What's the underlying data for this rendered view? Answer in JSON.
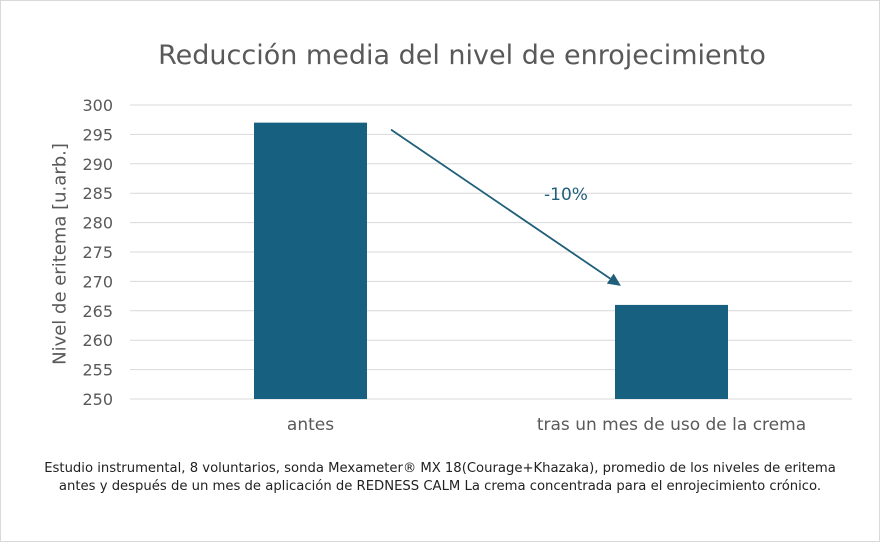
{
  "chart_data": {
    "type": "bar",
    "title": "Reducción media del nivel de enrojecimiento",
    "ylabel": "Nivel de eritema [u.arb.]",
    "xlabel": "",
    "categories": [
      "antes",
      "tras un mes de uso de la crema"
    ],
    "values": [
      297,
      266
    ],
    "ylim": [
      250,
      300
    ],
    "yticks": [
      250,
      255,
      260,
      265,
      270,
      275,
      280,
      285,
      290,
      295,
      300
    ],
    "grid": true,
    "legend": "none",
    "bar_color": "#17607f",
    "annotation": {
      "text": "-10%",
      "from_category": "antes",
      "to_category": "tras un mes de uso de la crema",
      "color": "#1f5f7a"
    }
  },
  "footnote": "Estudio instrumental, 8 voluntarios, sonda Mexameter® MX 18(Courage+Khazaka), promedio de los niveles de eritema antes y después de un mes de aplicación de REDNESS CALM La crema concentrada para el enrojecimiento crónico."
}
